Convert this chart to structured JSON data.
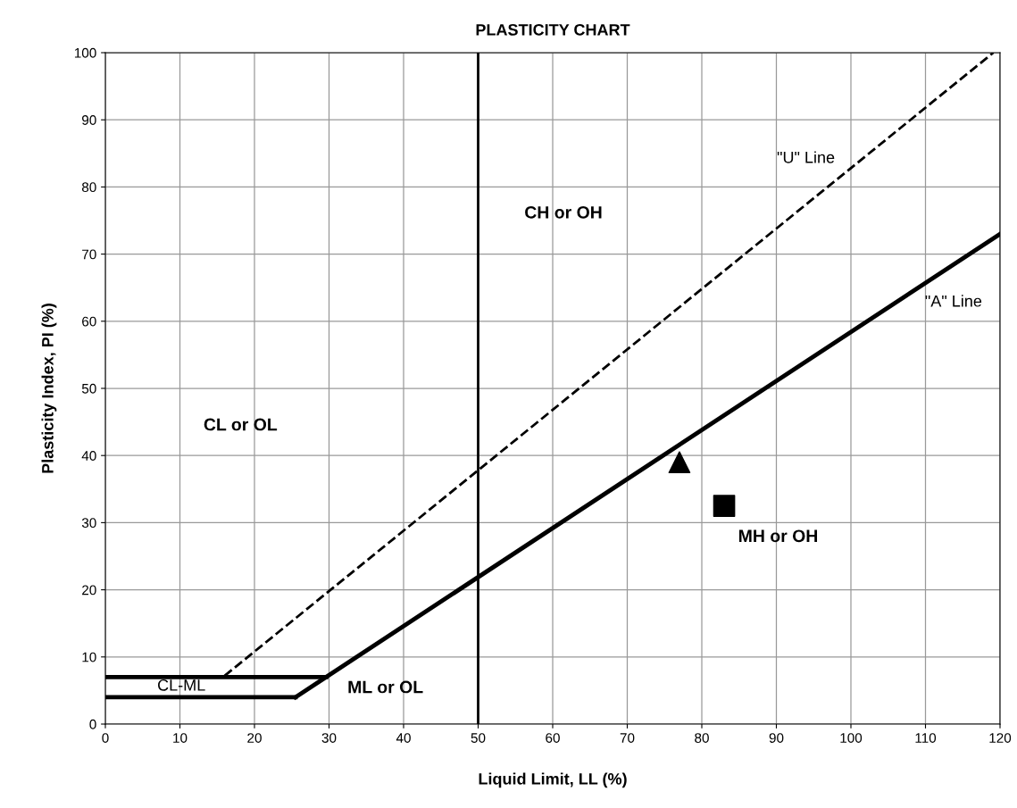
{
  "chart_data": {
    "type": "line",
    "title": "PLASTICITY CHART",
    "xlabel": "Liquid Limit, LL (%)",
    "ylabel": "Plasticity Index, PI (%)",
    "xlim": [
      0,
      120
    ],
    "xticks": [
      0,
      10,
      20,
      30,
      40,
      50,
      60,
      70,
      80,
      90,
      100,
      110,
      120
    ],
    "ylim": [
      0,
      100
    ],
    "yticks": [
      0,
      10,
      20,
      30,
      40,
      50,
      60,
      70,
      80,
      90,
      100
    ],
    "grid": true,
    "series": [
      {
        "color": "#000000",
        "line_style": "solid",
        "x": [
          25.5,
          120
        ],
        "values": [
          4,
          73
        ]
      },
      {
        "color": "#000000",
        "line_style": "dashed",
        "x": [
          16,
          119.1
        ],
        "values": [
          7.2,
          100
        ]
      },
      {
        "color": "#000000",
        "line_style": "solid",
        "x": [
          0,
          29.6
        ],
        "values": [
          7,
          7
        ]
      },
      {
        "color": "#000000",
        "line_style": "solid",
        "x": [
          0,
          25.5
        ],
        "values": [
          4,
          4
        ]
      },
      {
        "type": "scatter",
        "color": "#000000",
        "marker": "triangle",
        "x": [
          77
        ],
        "values": [
          39
        ]
      },
      {
        "type": "scatter",
        "color": "#000000",
        "marker": "square",
        "x": [
          83
        ],
        "values": [
          32.5
        ]
      }
    ],
    "ref_lines": [
      {
        "axis": "x",
        "value": 50,
        "label": null,
        "color": "#000000"
      }
    ],
    "annotations": [
      "CH or OH",
      "CL or OL",
      "MH or OH",
      "ML or OL",
      "CL-ML",
      "\"U\" Line",
      "\"A\" Line"
    ]
  }
}
